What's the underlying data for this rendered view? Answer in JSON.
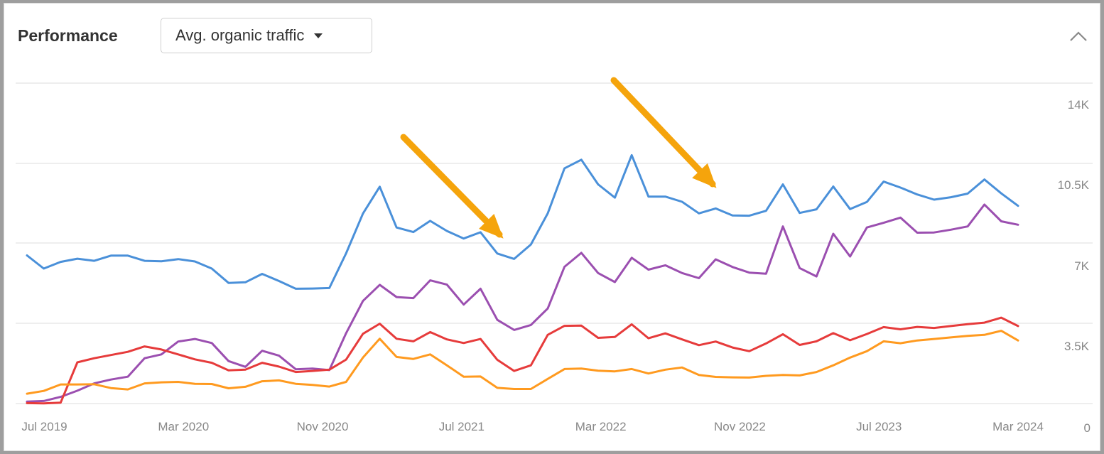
{
  "header": {
    "title": "Performance",
    "metric_select": "Avg. organic traffic"
  },
  "colors": {
    "blue": "#4a90d9",
    "purple": "#9b4fb0",
    "red": "#e63b3b",
    "orange": "#ff9a1f",
    "annotation": "#f5a40c",
    "grid": "#eeeeee"
  },
  "icons": {
    "collapse": "chevron-up-icon",
    "dropdown": "caret-down-icon",
    "annotation": "arrow-icon"
  },
  "chart_data": {
    "type": "line",
    "y_ticks": [
      "0",
      "3.5K",
      "7K",
      "10.5K",
      "14K"
    ],
    "y_tick_values": [
      0,
      3500,
      7000,
      10500,
      14000
    ],
    "ylim": [
      0,
      14000
    ],
    "x_ticks": [
      {
        "label": "Jul 2019",
        "month": "2019-07"
      },
      {
        "label": "Mar 2020",
        "month": "2020-03"
      },
      {
        "label": "Nov 2020",
        "month": "2020-11"
      },
      {
        "label": "Jul 2021",
        "month": "2021-07"
      },
      {
        "label": "Mar 2022",
        "month": "2022-03"
      },
      {
        "label": "Nov 2022",
        "month": "2022-11"
      },
      {
        "label": "Jul 2023",
        "month": "2023-07"
      },
      {
        "label": "Mar 2024",
        "month": "2024-03"
      }
    ],
    "x_start": "2019-06",
    "x_end": "2024-03",
    "grid": true,
    "series": [
      {
        "color": "blue",
        "values": [
          6900,
          6290,
          6600,
          6750,
          6650,
          6890,
          6890,
          6650,
          6630,
          6730,
          6620,
          6290,
          5620,
          5650,
          6040,
          5710,
          5350,
          5360,
          5380,
          7000,
          8850,
          10100,
          8200,
          7990,
          8510,
          8040,
          7690,
          7980,
          6990,
          6740,
          7410,
          8860,
          10960,
          11360,
          10210,
          9590,
          11570,
          9640,
          9640,
          9400,
          8860,
          9090,
          8760,
          8750,
          8980,
          10210,
          8880,
          9050,
          10110,
          9060,
          9390,
          10340,
          10060,
          9740,
          9500,
          9610,
          9780,
          10440,
          9790,
          9210
        ]
      },
      {
        "color": "purple",
        "values": [
          90,
          120,
          310,
          600,
          940,
          1120,
          1250,
          2110,
          2290,
          2890,
          3010,
          2820,
          1980,
          1710,
          2460,
          2230,
          1600,
          1630,
          1560,
          3280,
          4780,
          5530,
          4960,
          4910,
          5740,
          5540,
          4610,
          5350,
          3900,
          3430,
          3660,
          4430,
          6370,
          7020,
          6080,
          5660,
          6790,
          6240,
          6440,
          6080,
          5840,
          6720,
          6360,
          6100,
          6050,
          8250,
          6310,
          5920,
          7910,
          6850,
          8200,
          8420,
          8660,
          7960,
          7970,
          8100,
          8250,
          9270,
          8490,
          8330
        ]
      },
      {
        "color": "red",
        "values": [
          20,
          10,
          40,
          1920,
          2110,
          2260,
          2410,
          2660,
          2520,
          2290,
          2060,
          1900,
          1550,
          1580,
          1900,
          1720,
          1470,
          1520,
          1580,
          2050,
          3250,
          3720,
          3020,
          2900,
          3330,
          2990,
          2820,
          3010,
          2040,
          1520,
          1780,
          3200,
          3620,
          3630,
          3060,
          3100,
          3690,
          3040,
          3270,
          2990,
          2720,
          2890,
          2610,
          2440,
          2800,
          3230,
          2730,
          2900,
          3280,
          2950,
          3240,
          3560,
          3460,
          3570,
          3520,
          3610,
          3700,
          3770,
          4000,
          3610
        ]
      },
      {
        "color": "orange",
        "values": [
          460,
          590,
          890,
          890,
          900,
          720,
          660,
          940,
          990,
          1010,
          920,
          910,
          710,
          780,
          1040,
          1080,
          920,
          870,
          790,
          1010,
          2140,
          3020,
          2170,
          2080,
          2290,
          1780,
          1250,
          1260,
          730,
          680,
          680,
          1150,
          1610,
          1630,
          1530,
          1500,
          1610,
          1400,
          1580,
          1680,
          1330,
          1240,
          1220,
          1210,
          1290,
          1330,
          1310,
          1470,
          1780,
          2140,
          2440,
          2900,
          2810,
          2940,
          3010,
          3080,
          3150,
          3200,
          3390,
          2940
        ]
      }
    ]
  }
}
